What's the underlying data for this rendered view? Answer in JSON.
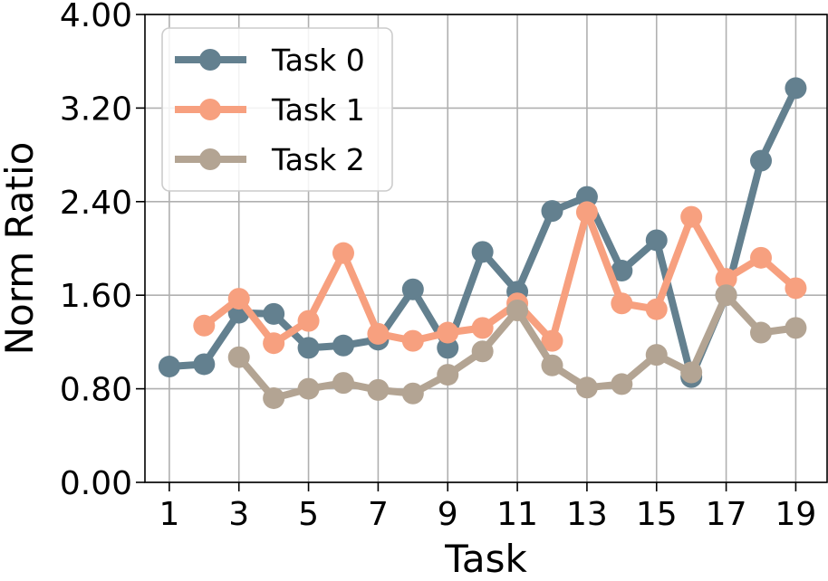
{
  "chart_data": {
    "type": "line",
    "title": "",
    "xlabel": "Task",
    "ylabel": "Norm Ratio",
    "x": [
      1,
      2,
      3,
      4,
      5,
      6,
      7,
      8,
      9,
      10,
      11,
      12,
      13,
      14,
      15,
      16,
      17,
      18,
      19
    ],
    "xticks": [
      1,
      3,
      5,
      7,
      9,
      11,
      13,
      15,
      17,
      19
    ],
    "xlim": [
      0.3,
      19.9
    ],
    "ylim": [
      0,
      4.0
    ],
    "yticks": [
      "0.00",
      "0.80",
      "1.60",
      "2.40",
      "3.20",
      "4.00"
    ],
    "grid": true,
    "legend_position": "top-left",
    "series": [
      {
        "name": "Task 0",
        "color": "#63808f",
        "x": [
          1,
          2,
          3,
          4,
          5,
          6,
          7,
          8,
          9,
          10,
          11,
          12,
          13,
          14,
          15,
          16,
          17,
          18,
          19
        ],
        "values": [
          0.99,
          1.01,
          1.45,
          1.44,
          1.15,
          1.17,
          1.22,
          1.65,
          1.15,
          1.97,
          1.63,
          2.32,
          2.44,
          1.81,
          2.07,
          0.9,
          1.6,
          2.75,
          3.37
        ]
      },
      {
        "name": "Task 1",
        "color": "#f7a07f",
        "x": [
          2,
          3,
          4,
          5,
          6,
          7,
          8,
          9,
          10,
          11,
          12,
          13,
          14,
          15,
          16,
          17,
          18,
          19
        ],
        "values": [
          1.34,
          1.57,
          1.19,
          1.38,
          1.96,
          1.27,
          1.21,
          1.28,
          1.32,
          1.53,
          1.21,
          2.31,
          1.53,
          1.48,
          2.27,
          1.74,
          1.92,
          1.66
        ]
      },
      {
        "name": "Task 2",
        "color": "#b3a493",
        "x": [
          3,
          4,
          5,
          6,
          7,
          8,
          9,
          10,
          11,
          12,
          13,
          14,
          15,
          16,
          17,
          18,
          19
        ],
        "values": [
          1.07,
          0.72,
          0.8,
          0.85,
          0.79,
          0.76,
          0.92,
          1.12,
          1.47,
          1.0,
          0.81,
          0.84,
          1.09,
          0.94,
          1.6,
          1.28,
          1.32
        ]
      }
    ]
  }
}
